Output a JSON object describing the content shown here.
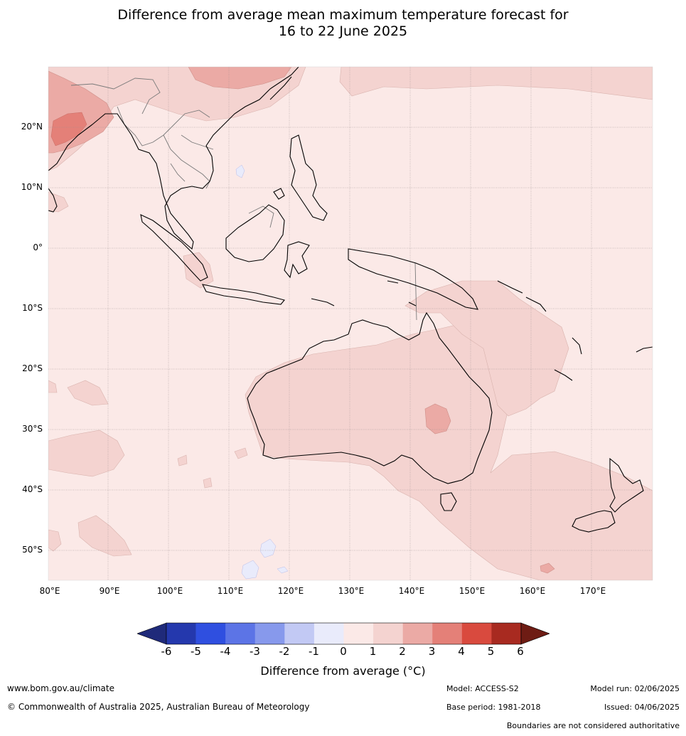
{
  "title_line1": "Difference from average mean maximum temperature forecast for",
  "title_line2": "16 to 22 June 2025",
  "lat_labels": [
    "20°N",
    "10°N",
    "0°",
    "10°S",
    "20°S",
    "30°S",
    "40°S",
    "50°S"
  ],
  "lon_labels": [
    "80°E",
    "90°E",
    "100°E",
    "110°E",
    "120°E",
    "130°E",
    "140°E",
    "150°E",
    "160°E",
    "170°E"
  ],
  "colorbar": {
    "ticks": [
      "-6",
      "-5",
      "-4",
      "-3",
      "-2",
      "-1",
      "0",
      "1",
      "2",
      "3",
      "4",
      "5",
      "6"
    ],
    "label": "Difference from average (°C)",
    "colors": {
      "lt-6": "#1f2a7a",
      "-6..-5": "#2438ad",
      "-5..-4": "#2f4fe0",
      "-4..-3": "#5c74e6",
      "-3..-2": "#8799ec",
      "-2..-1": "#c2c9f4",
      "-1..0": "#e9ebfb",
      "0..1": "#fbe9e7",
      "1..2": "#f4d3d0",
      "2..3": "#ebaaa5",
      "3..4": "#e48078",
      "4..5": "#d94a3e",
      "5..6": "#a82a20",
      "gt6": "#6e1c14"
    }
  },
  "footer": {
    "website": "www.bom.gov.au/climate",
    "copyright": "© Commonwealth of Australia 2025, Australian Bureau of Meteorology",
    "model": "Model: ACCESS-S2",
    "base_period": "Base period: 1981-2018",
    "model_run": "Model run: 02/06/2025",
    "issued": "Issued: 04/06/2025",
    "disclaimer": "Boundaries are not considered authoritative"
  }
}
